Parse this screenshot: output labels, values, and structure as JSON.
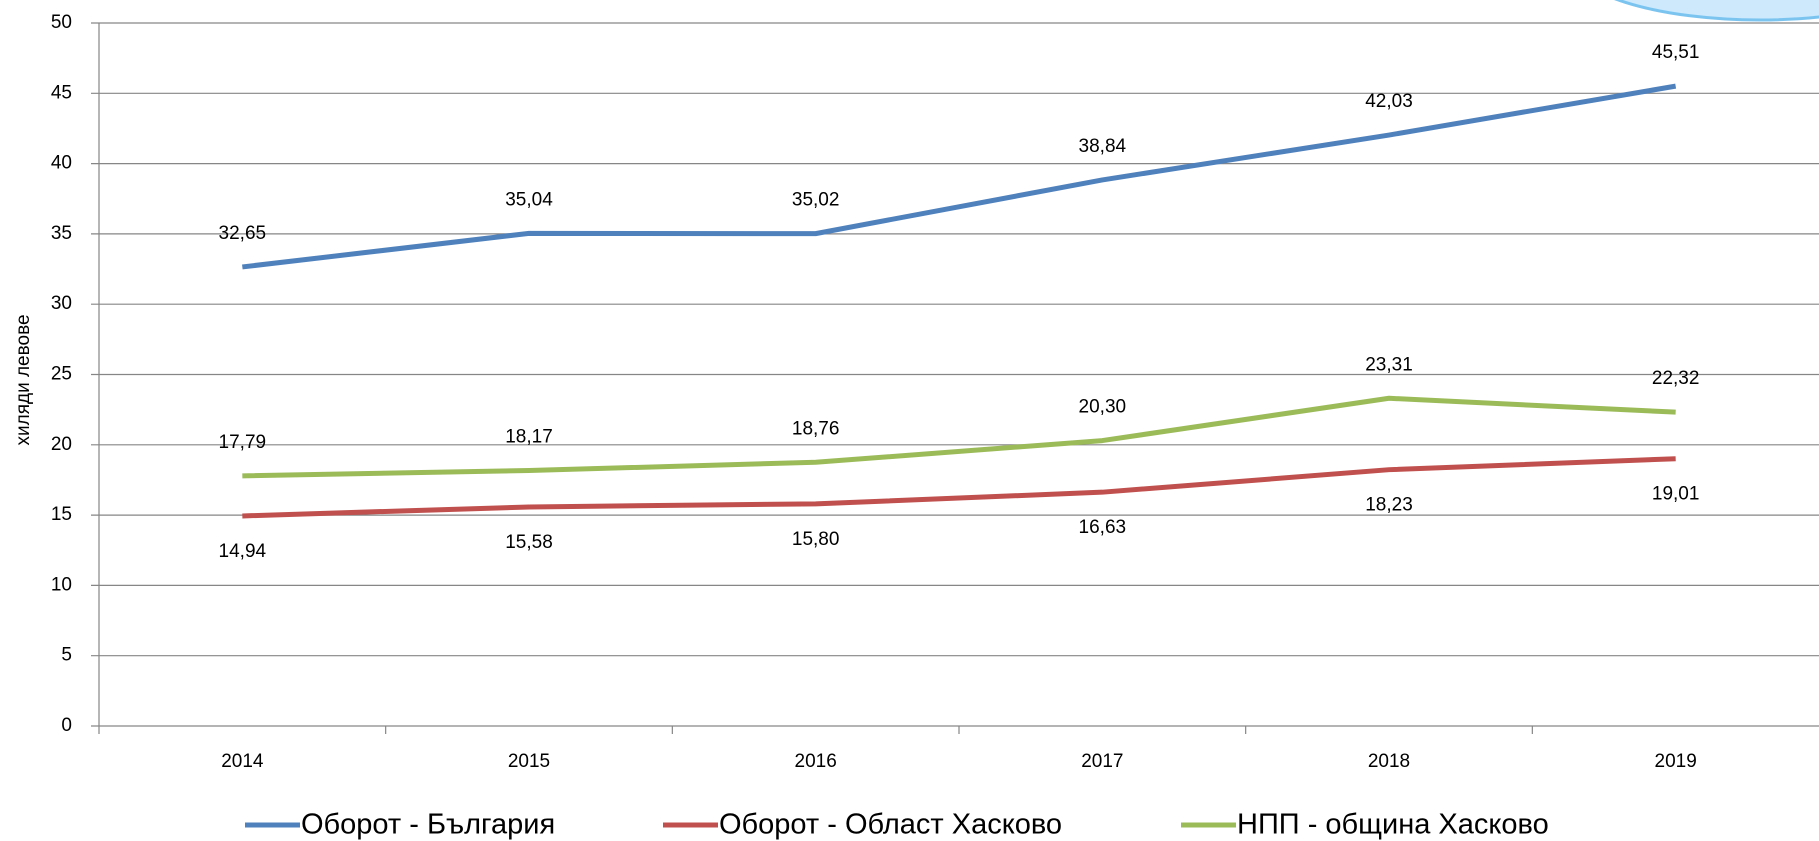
{
  "chart_data": {
    "type": "line",
    "y_label": "хиляди левове",
    "categories": [
      "2014",
      "2015",
      "2016",
      "2017",
      "2018",
      "2019"
    ],
    "series": [
      {
        "name": "Оборот - България",
        "color": "#4f81bd",
        "values": [
          32.65,
          35.04,
          35.02,
          38.84,
          42.03,
          45.51
        ],
        "value_labels": [
          "32,65",
          "35,04",
          "35,02",
          "38,84",
          "42,03",
          "45,51"
        ]
      },
      {
        "name": "Оборот - Област Хасково",
        "color": "#c0504d",
        "values": [
          14.94,
          15.58,
          15.8,
          16.63,
          18.23,
          19.01
        ],
        "value_labels": [
          "14,94",
          "15,58",
          "15,80",
          "16,63",
          "18,23",
          "19,01"
        ]
      },
      {
        "name": "НПП - община Хасково",
        "color": "#9bbb59",
        "values": [
          17.79,
          18.17,
          18.76,
          20.3,
          23.31,
          22.32
        ],
        "value_labels": [
          "17,79",
          "18,17",
          "18,76",
          "20,30",
          "23,31",
          "22,32"
        ]
      }
    ],
    "ylim": [
      0,
      50
    ],
    "yticks": [
      0,
      5,
      10,
      15,
      20,
      25,
      30,
      35,
      40,
      45,
      50
    ],
    "grid": true
  }
}
